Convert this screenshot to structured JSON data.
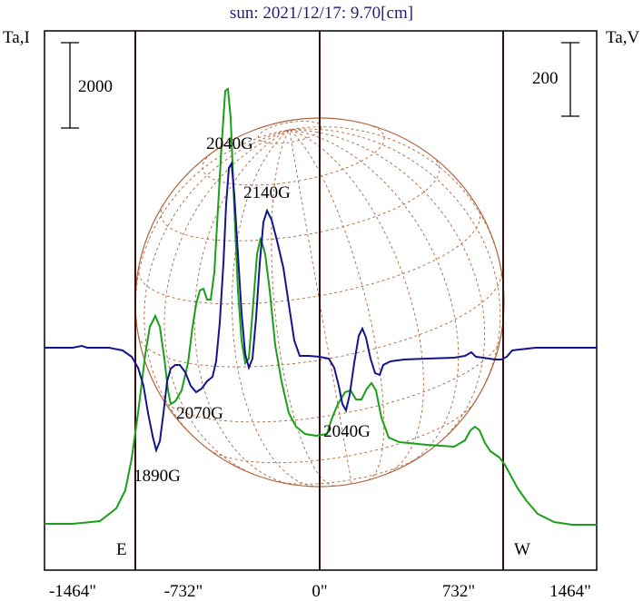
{
  "chart_data": {
    "type": "line",
    "title": "sun: 2021/12/17: 9.70[cm]",
    "ylabel_left": "Ta,I",
    "ylabel_right": "Ta,V",
    "scale_left_label": "2000",
    "scale_right_label": "200",
    "xlim": [
      -1464,
      1464
    ],
    "x_ticks": [
      -1464,
      -732,
      0,
      732,
      1464
    ],
    "x_tick_labels": [
      "-1464\"",
      "-732\"",
      "0\"",
      "732\"",
      "1464\""
    ],
    "limb_positions": [
      -1461,
      -732,
      0,
      732,
      1461
    ],
    "limb_markers": [
      {
        "x": -732,
        "label": "E"
      },
      {
        "x": 732,
        "label": "W"
      }
    ],
    "series": [
      {
        "key": "I",
        "color": "#18a018",
        "x": [
          -1464,
          -1100,
          -1000,
          -900,
          -850,
          -810,
          -790,
          -770,
          -760,
          -740,
          -720,
          -700,
          -680,
          -660,
          -640,
          -620,
          -600,
          -580,
          -560,
          -540,
          -520,
          -505,
          -490,
          -480,
          -470,
          -460,
          -450,
          -440,
          -420,
          -400,
          -380,
          -360,
          -340,
          -320,
          -300,
          -280,
          -260,
          -240,
          -220,
          -200,
          -180,
          -160,
          -140,
          -100,
          -50,
          0,
          50,
          100,
          130,
          160,
          180,
          200,
          230,
          250,
          280,
          300,
          350,
          400,
          450,
          500,
          550,
          600,
          620,
          640,
          660,
          680,
          700,
          740,
          780,
          820,
          860,
          900,
          950,
          1000,
          1100,
          1200,
          1300,
          1464
        ],
        "y": [
          -0.12,
          -0.12,
          -0.105,
          -0.075,
          -0.04,
          0.005,
          0.045,
          0.09,
          0.13,
          0.165,
          0.19,
          0.21,
          0.24,
          0.28,
          0.33,
          0.38,
          0.4,
          0.39,
          0.37,
          0.41,
          0.46,
          0.49,
          0.52,
          0.45,
          0.38,
          0.3,
          0.23,
          0.19,
          0.15,
          0.09,
          0.12,
          0.24,
          0.46,
          0.54,
          0.62,
          0.67,
          0.74,
          0.85,
          0.95,
          1.0,
          1.0,
          0.98,
          0.96,
          0.9,
          0.76,
          0.6,
          0.44,
          0.31,
          0.17,
          0.04,
          -0.02,
          -0.02,
          -0.025,
          -0.03,
          -0.03,
          -0.03,
          -0.03,
          -0.03,
          -0.03,
          -0.03,
          -0.03,
          -0.03,
          -0.04,
          -0.07,
          -0.09,
          -0.11,
          -0.11,
          -0.12,
          -0.12,
          -0.12,
          -0.12,
          -0.12,
          -0.12,
          -0.12,
          -0.12,
          -0.12,
          -0.12,
          -0.12
        ],
        "tmp": 0
      },
      {
        "key": "V",
        "color": "#14148c",
        "x": [],
        "y": []
      }
    ],
    "annotations": [
      {
        "text": "2040G",
        "x": -470,
        "y_frac": 0.24
      },
      {
        "text": "2140G",
        "x": -300,
        "y_frac": 0.32
      },
      {
        "text": "2070G",
        "x": -590,
        "y_frac": 0.69
      },
      {
        "text": "1890G",
        "x": -735,
        "y_frac": 0.8
      },
      {
        "text": "2040G",
        "x": 200,
        "y_frac": 0.72
      }
    ]
  }
}
